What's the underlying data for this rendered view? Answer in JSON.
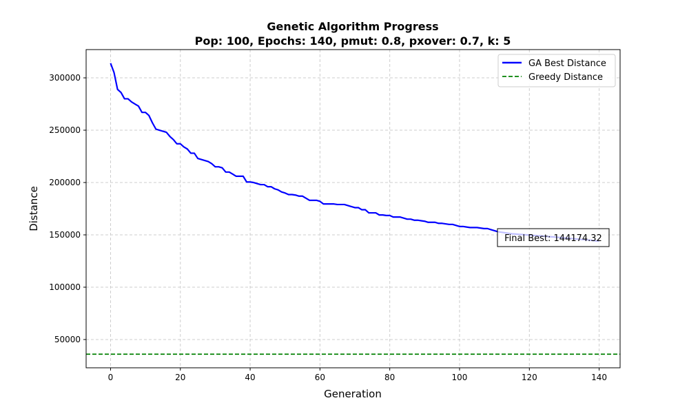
{
  "chart_data": {
    "type": "line",
    "title": "Genetic Algorithm Progress",
    "subtitle": "Pop: 100, Epochs: 140, pmut: 0.8, pxover: 0.7, k: 5",
    "xlabel": "Generation",
    "ylabel": "Distance",
    "xlim": [
      -7,
      146
    ],
    "ylim": [
      23000,
      327000
    ],
    "xticks": [
      0,
      20,
      40,
      60,
      80,
      100,
      120,
      140
    ],
    "yticks": [
      50000,
      100000,
      150000,
      200000,
      250000,
      300000
    ],
    "grid": true,
    "legend_position": "top-right",
    "series": [
      {
        "name": "GA Best Distance",
        "style": "solid",
        "color": "#0000ff",
        "x": [
          0,
          1,
          2,
          3,
          4,
          5,
          6,
          7,
          8,
          9,
          10,
          11,
          12,
          13,
          14,
          15,
          16,
          17,
          18,
          19,
          20,
          21,
          22,
          23,
          24,
          25,
          26,
          27,
          28,
          29,
          30,
          31,
          32,
          33,
          34,
          35,
          36,
          37,
          38,
          39,
          40,
          41,
          42,
          43,
          44,
          45,
          46,
          47,
          48,
          49,
          50,
          51,
          52,
          53,
          54,
          55,
          56,
          57,
          58,
          59,
          60,
          61,
          62,
          63,
          64,
          65,
          66,
          67,
          68,
          69,
          70,
          71,
          72,
          73,
          74,
          75,
          76,
          77,
          78,
          79,
          80,
          81,
          82,
          83,
          84,
          85,
          86,
          87,
          88,
          89,
          90,
          91,
          92,
          93,
          94,
          95,
          96,
          97,
          98,
          99,
          100,
          101,
          102,
          103,
          104,
          105,
          106,
          107,
          108,
          109,
          110,
          111,
          112,
          113,
          114,
          115,
          116,
          117,
          118,
          119,
          120,
          121,
          122,
          123,
          124,
          125,
          126,
          127,
          128,
          129,
          130,
          131,
          132,
          133,
          134,
          135,
          136,
          137,
          138,
          139,
          140
        ],
        "values": [
          314000,
          305000,
          289000,
          286000,
          280000,
          280000,
          277000,
          275000,
          273000,
          267000,
          267000,
          264000,
          257000,
          251000,
          250000,
          249000,
          248000,
          244000,
          241000,
          237000,
          237000,
          234000,
          232000,
          228000,
          228000,
          223000,
          222000,
          221000,
          220000,
          218000,
          215000,
          215000,
          214000,
          210000,
          210000,
          208000,
          206000,
          206000,
          206000,
          200500,
          200500,
          200000,
          199000,
          198000,
          198000,
          196000,
          196000,
          194000,
          193000,
          191000,
          190000,
          188500,
          188500,
          188000,
          187000,
          187000,
          185000,
          183000,
          183000,
          183000,
          182000,
          179500,
          179500,
          179500,
          179500,
          179000,
          179000,
          179000,
          178000,
          177000,
          176000,
          176000,
          174000,
          174000,
          171000,
          171000,
          171000,
          169000,
          169000,
          168500,
          168500,
          167000,
          167000,
          167000,
          166000,
          165000,
          165000,
          164000,
          164000,
          163500,
          163000,
          162000,
          162000,
          162000,
          161000,
          161000,
          160500,
          160000,
          160000,
          159000,
          158000,
          158000,
          157500,
          157000,
          157000,
          157000,
          156500,
          156000,
          156000,
          155000,
          154000,
          153000,
          152500,
          152000,
          151500,
          151000,
          150800,
          150500,
          150300,
          150000,
          149800,
          149500,
          149200,
          149000,
          148800,
          148500,
          148200,
          148000,
          147700,
          147400,
          147100,
          146800,
          146500,
          146200,
          145900,
          145600,
          145300,
          145000,
          144700,
          144174.32,
          144174.32
        ]
      },
      {
        "name": "Greedy Distance",
        "style": "dashed",
        "color": "#008000",
        "constant_y": 36000
      }
    ],
    "annotation": {
      "text": "Final Best: 144174.32",
      "anchor": "right-of-curve-end"
    }
  }
}
